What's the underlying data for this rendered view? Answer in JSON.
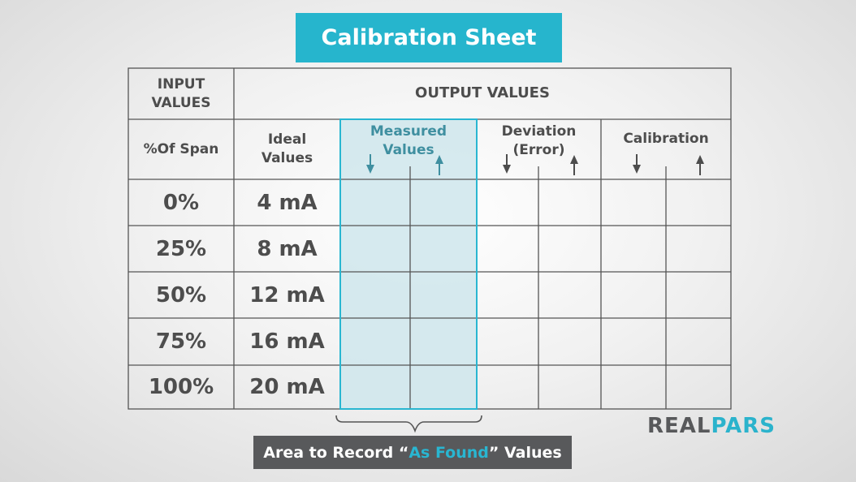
{
  "title": "Calibration Sheet",
  "headers": {
    "input_values": "INPUT\nVALUES",
    "output_values": "OUTPUT VALUES",
    "span": "%Of Span",
    "ideal": "Ideal\nValues",
    "measured": "Measured\nValues",
    "deviation": "Deviation\n(Error)",
    "calibration": "Calibration"
  },
  "rows": [
    {
      "span": "0%",
      "ideal": "4 mA"
    },
    {
      "span": "25%",
      "ideal": "8 mA"
    },
    {
      "span": "50%",
      "ideal": "12 mA"
    },
    {
      "span": "75%",
      "ideal": "16 mA"
    },
    {
      "span": "100%",
      "ideal": "20 mA"
    }
  ],
  "caption": {
    "prefix": "Area to Record “",
    "highlight": "As Found",
    "suffix": "” Values"
  },
  "logo": {
    "part1": "REAL",
    "part2": "PARS"
  },
  "colors": {
    "accent": "#26b5cd",
    "caption_bg": "#58595b",
    "measured_fill": "#cfe6ec",
    "measured_border": "#29b6d1",
    "text": "#4d4d4d"
  },
  "icons": {
    "down_arrow": "arrow-down-icon",
    "up_arrow": "arrow-up-icon",
    "brace": "curly-brace-icon"
  }
}
